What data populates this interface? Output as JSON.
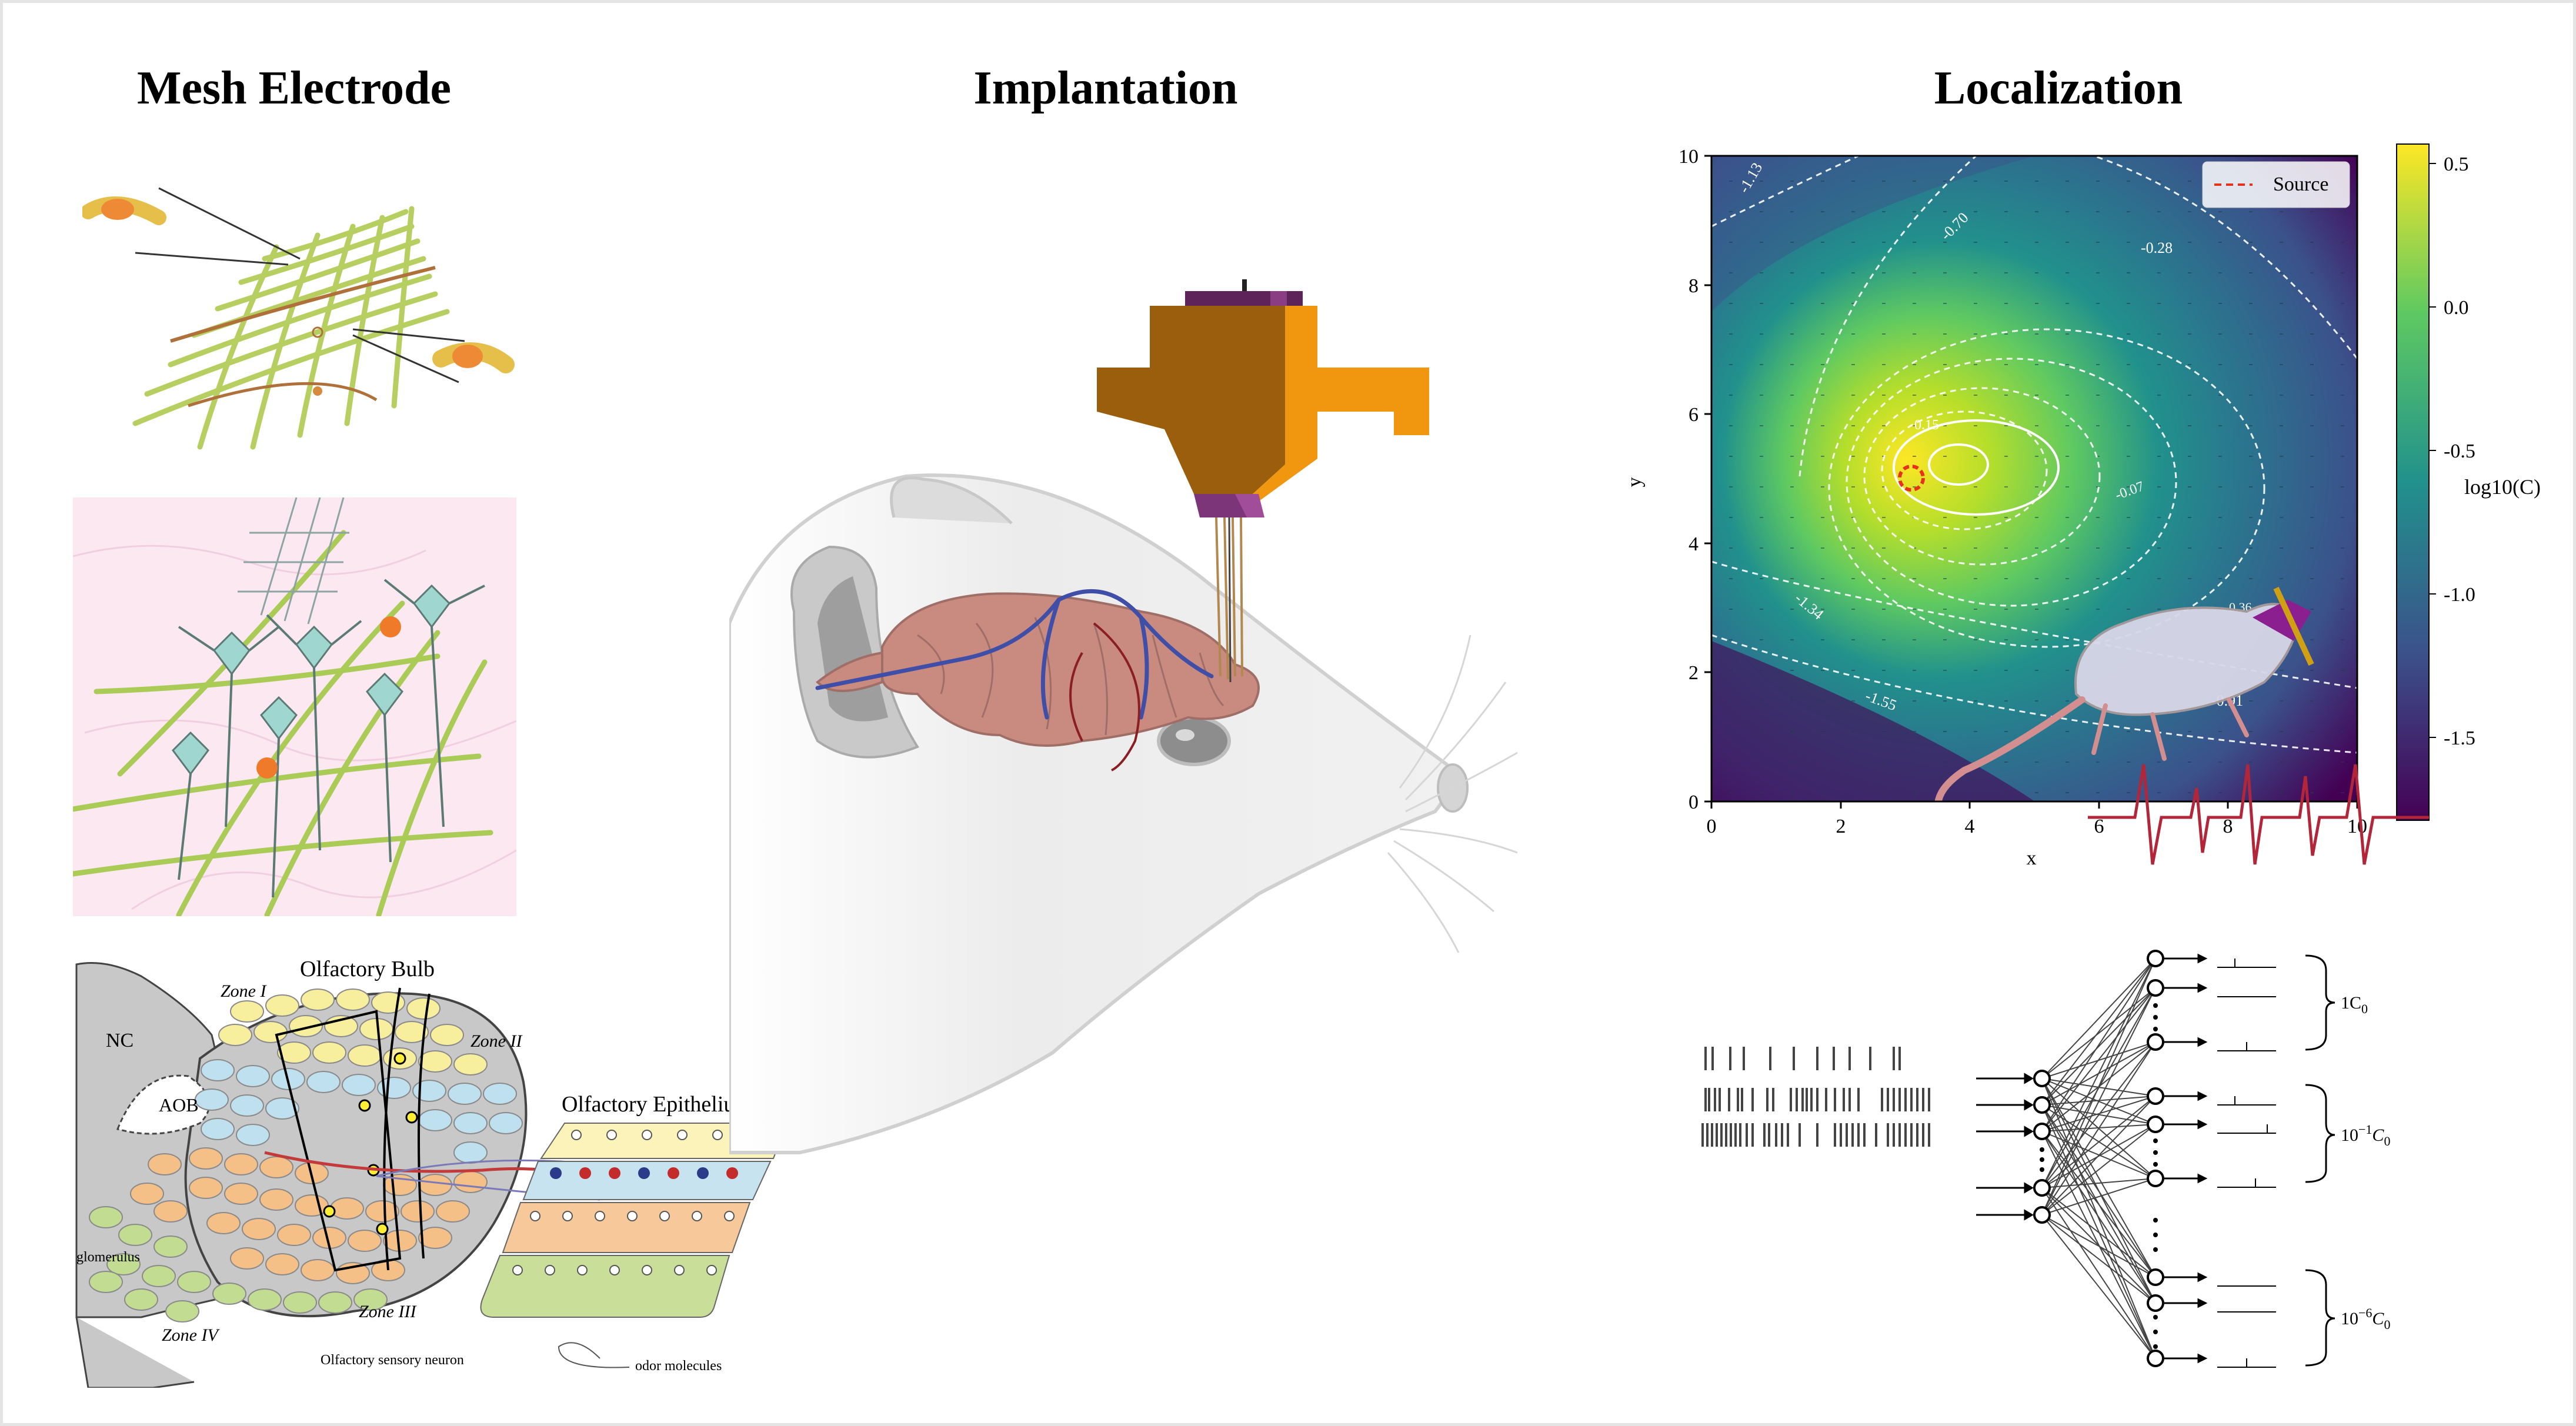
{
  "headers": {
    "mesh": "Mesh Electrode",
    "implant": "Implantation",
    "local": "Localization"
  },
  "bulb": {
    "title": "Olfactory Bulb",
    "zone1": "Zone I",
    "zone2": "Zone II",
    "zone3": "Zone III",
    "zone4": "Zone IV",
    "nc": "NC",
    "aob": "AOB",
    "glomerulus": "glomerulus",
    "epithelium": "Olfactory Epithelium",
    "osn": "Olfactory sensory neuron",
    "odor": "odor molecules"
  },
  "heatmap": {
    "xlabel": "x",
    "ylabel": "y",
    "xticks": [
      "0",
      "2",
      "4",
      "6",
      "8",
      "10"
    ],
    "yticks": [
      "0",
      "2",
      "4",
      "6",
      "8",
      "10"
    ],
    "legend": "Source",
    "colorbar_label": "log10(C)",
    "colorbar_ticks": [
      "0.5",
      "0.0",
      "-0.5",
      "-1.0",
      "-1.5"
    ],
    "contours": [
      "-1.13",
      "-0.70",
      "-0.28",
      "0.15",
      "-0.07",
      "-1.34",
      "-1.55",
      "-0.91",
      "0.36"
    ],
    "source": {
      "x": 3.1,
      "y": 5.0
    },
    "colormap": [
      "#440154",
      "#3b528b",
      "#21918c",
      "#5ec962",
      "#fde725"
    ]
  },
  "network": {
    "group1": "1C",
    "group2": "10",
    "group2_exp": "−1",
    "group3": "10",
    "group3_exp": "−6",
    "sub": "0"
  }
}
